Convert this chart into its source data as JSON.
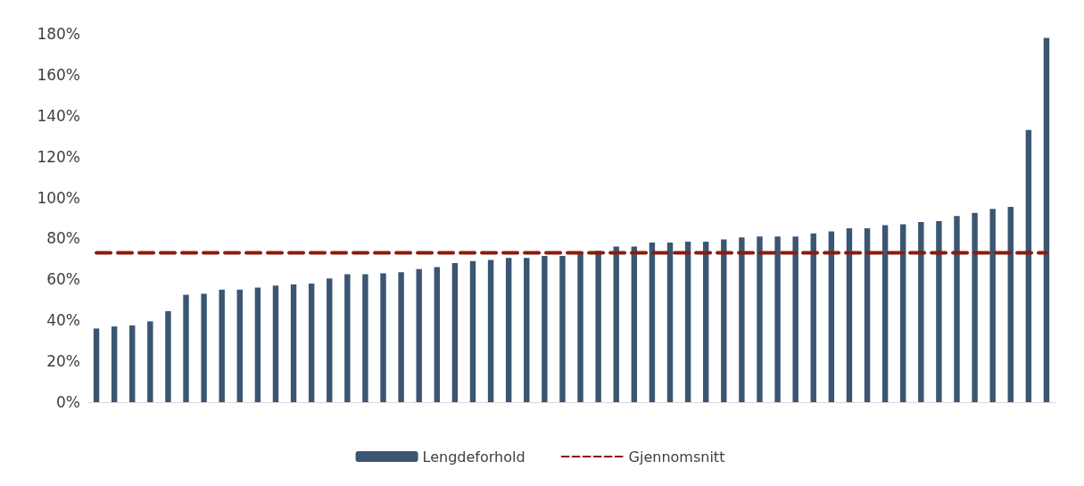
{
  "chart_data": {
    "type": "bar",
    "categories": [
      null,
      null,
      null,
      null,
      null,
      null,
      null,
      null,
      null,
      null,
      null,
      null,
      null,
      null,
      null,
      null,
      null,
      null,
      null,
      null,
      null,
      null,
      null,
      null,
      null,
      null,
      null,
      null,
      null,
      null,
      null,
      null,
      null,
      null,
      null,
      null,
      null,
      null,
      null,
      null,
      null,
      null,
      null,
      null,
      null,
      null,
      null,
      null,
      null,
      null,
      null,
      null,
      null,
      null
    ],
    "series": [
      {
        "name": "Lengdeforhold",
        "color": "#3b5673",
        "values": [
          36,
          37,
          37.5,
          39.5,
          44.5,
          52.5,
          53,
          55,
          55,
          56,
          57,
          57.5,
          58,
          60.5,
          62.5,
          62.5,
          63,
          63.5,
          65,
          66,
          68,
          69,
          69.5,
          70.5,
          70.5,
          71.5,
          71.5,
          73,
          74,
          76,
          76,
          78,
          78,
          78.5,
          78.5,
          79.5,
          80.5,
          81,
          81,
          81,
          82.5,
          83.5,
          85,
          85,
          86.5,
          87,
          88,
          88.5,
          91,
          92.5,
          94.5,
          95.5,
          133,
          178
        ]
      },
      {
        "name": "Gjennomsnitt",
        "type": "line",
        "color": "#8b1a0e",
        "line_style": "dashed",
        "marker": "none",
        "values": [
          73,
          73,
          73,
          73,
          73,
          73,
          73,
          73,
          73,
          73,
          73,
          73,
          73,
          73,
          73,
          73,
          73,
          73,
          73,
          73,
          73,
          73,
          73,
          73,
          73,
          73,
          73,
          73,
          73,
          73,
          73,
          73,
          73,
          73,
          73,
          73,
          73,
          73,
          73,
          73,
          73,
          73,
          73,
          73,
          73,
          73,
          73,
          73,
          73,
          73,
          73,
          73,
          73,
          73
        ]
      }
    ],
    "ylim": [
      0,
      180
    ],
    "yticks": [
      {
        "value": 0,
        "label": "0%"
      },
      {
        "value": 20,
        "label": "20%"
      },
      {
        "value": 40,
        "label": "40%"
      },
      {
        "value": 60,
        "label": "60%"
      },
      {
        "value": 80,
        "label": "80%"
      },
      {
        "value": 100,
        "label": "100%"
      },
      {
        "value": 120,
        "label": "120%"
      },
      {
        "value": 140,
        "label": "140%"
      },
      {
        "value": 160,
        "label": "160%"
      },
      {
        "value": 180,
        "label": "180%"
      }
    ],
    "grid": false,
    "legend": "bottom"
  }
}
